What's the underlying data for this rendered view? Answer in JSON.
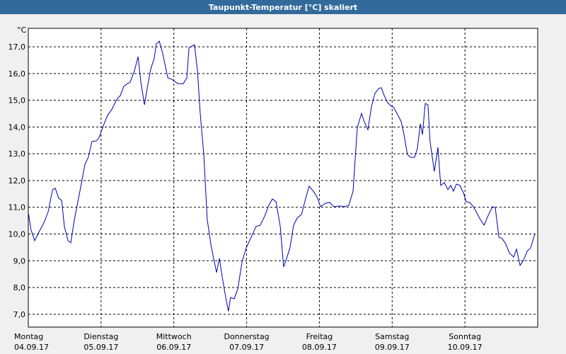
{
  "chart_data": {
    "type": "line",
    "title": "Taupunkt-Temperatur [°C] skaliert",
    "y_unit": "°C",
    "x": [
      0,
      0.9,
      2.1,
      3.5,
      5.1,
      6.5,
      8.0,
      8.9,
      10.0,
      11.0,
      11.9,
      13.1,
      14.0,
      15.2,
      16.8,
      18.7,
      19.8,
      21.0,
      22.4,
      23.3,
      25.0,
      26.1,
      27.5,
      29.2,
      30.3,
      31.5,
      32.7,
      33.6,
      35.0,
      36.2,
      37.1,
      38.3,
      39.4,
      40.4,
      41.5,
      42.2,
      43.2,
      44.3,
      46.0,
      47.4,
      48.3,
      49.5,
      51.1,
      52.3,
      53.0,
      53.7,
      54.8,
      55.8,
      56.7,
      57.9,
      59.0,
      60.2,
      61.1,
      62.1,
      63.0,
      63.9,
      65.1,
      66.0,
      66.7,
      67.9,
      69.1,
      70.5,
      71.9,
      73.5,
      75.1,
      76.5,
      78.0,
      79.3,
      80.5,
      81.7,
      83.1,
      84.2,
      85.2,
      86.3,
      87.5,
      88.7,
      90.1,
      91.5,
      92.6,
      94.0,
      95.2,
      96.4,
      98.0,
      99.4,
      100.8,
      102.7,
      104.3,
      105.7,
      107.1,
      108.5,
      109.9,
      110.8,
      112.0,
      113.2,
      114.3,
      115.5,
      116.4,
      117.4,
      118.5,
      119.7,
      120.6,
      121.8,
      123.0,
      123.9,
      125.0,
      126.0,
      127.4,
      128.3,
      129.3,
      130.0,
      130.9,
      131.8,
      132.5,
      133.9,
      135.1,
      136.0,
      137.2,
      138.4,
      139.3,
      140.2,
      141.2,
      142.3,
      143.5,
      144.4,
      145.6,
      146.8,
      148.2,
      149.1,
      150.3,
      151.7,
      153.1,
      154.0,
      155.2,
      156.3,
      157.5,
      158.7,
      160.1,
      161.0,
      162.2,
      163.3,
      164.5,
      165.7,
      167.1
    ],
    "series": [
      {
        "name": "Taupunkt",
        "color": "#0000b0",
        "values": [
          10.81,
          10.15,
          9.75,
          10.07,
          10.41,
          10.81,
          11.66,
          11.71,
          11.34,
          11.26,
          10.28,
          9.75,
          9.67,
          10.54,
          11.47,
          12.61,
          12.87,
          13.46,
          13.48,
          13.59,
          14.12,
          14.43,
          14.65,
          15.04,
          15.17,
          15.52,
          15.62,
          15.68,
          16.1,
          16.63,
          15.7,
          14.83,
          15.57,
          16.18,
          16.55,
          17.11,
          17.21,
          16.76,
          15.84,
          15.78,
          15.7,
          15.62,
          15.62,
          15.84,
          16.97,
          17.0,
          17.08,
          16.1,
          14.51,
          12.93,
          10.55,
          9.62,
          9.09,
          8.56,
          9.09,
          8.43,
          7.63,
          7.11,
          7.63,
          7.58,
          7.95,
          8.96,
          9.49,
          9.88,
          10.28,
          10.33,
          10.68,
          11.07,
          11.31,
          11.21,
          10.28,
          8.77,
          9.09,
          9.49,
          10.33,
          10.6,
          10.73,
          11.34,
          11.79,
          11.6,
          11.39,
          11.02,
          11.15,
          11.18,
          11.02,
          11.05,
          11.02,
          11.07,
          11.6,
          13.98,
          14.51,
          14.2,
          13.9,
          14.78,
          15.25,
          15.44,
          15.47,
          15.17,
          14.91,
          14.78,
          14.72,
          14.46,
          14.2,
          13.72,
          12.98,
          12.87,
          12.87,
          13.19,
          14.12,
          13.72,
          14.88,
          14.83,
          13.46,
          12.34,
          13.24,
          11.82,
          11.92,
          11.66,
          11.82,
          11.6,
          11.87,
          11.82,
          11.55,
          11.21,
          11.18,
          11.02,
          10.73,
          10.54,
          10.33,
          10.7,
          11.02,
          10.99,
          9.88,
          9.83,
          9.62,
          9.28,
          9.14,
          9.43,
          8.83,
          9.01,
          9.35,
          9.49,
          10.02
        ]
      }
    ],
    "xlim": [
      0,
      168
    ],
    "xticks": [
      {
        "value": 0,
        "label": "Montag"
      },
      {
        "value": 24,
        "label": "Dienstag"
      },
      {
        "value": 48,
        "label": "Mittwoch"
      },
      {
        "value": 72,
        "label": "Donnerstag"
      },
      {
        "value": 96,
        "label": "Freitag"
      },
      {
        "value": 120,
        "label": "Samstag"
      },
      {
        "value": 144,
        "label": "Sonntag"
      }
    ],
    "xtick_dates": [
      "04.09.17",
      "05.09.17",
      "06.09.17",
      "07.09.17",
      "08.09.17",
      "09.09.17",
      "10.09.17"
    ],
    "ylim": [
      6.52,
      17.69
    ],
    "yticks": [
      {
        "value": 7,
        "label": "7,0"
      },
      {
        "value": 8,
        "label": "8,0"
      },
      {
        "value": 9,
        "label": "9,0"
      },
      {
        "value": 10,
        "label": "10,0"
      },
      {
        "value": 11,
        "label": "11,0"
      },
      {
        "value": 12,
        "label": "12,0"
      },
      {
        "value": 13,
        "label": "13,0"
      },
      {
        "value": 14,
        "label": "14,0"
      },
      {
        "value": 15,
        "label": "15,0"
      },
      {
        "value": 16,
        "label": "16,0"
      },
      {
        "value": 17,
        "label": "17,0"
      }
    ],
    "grid": true
  }
}
